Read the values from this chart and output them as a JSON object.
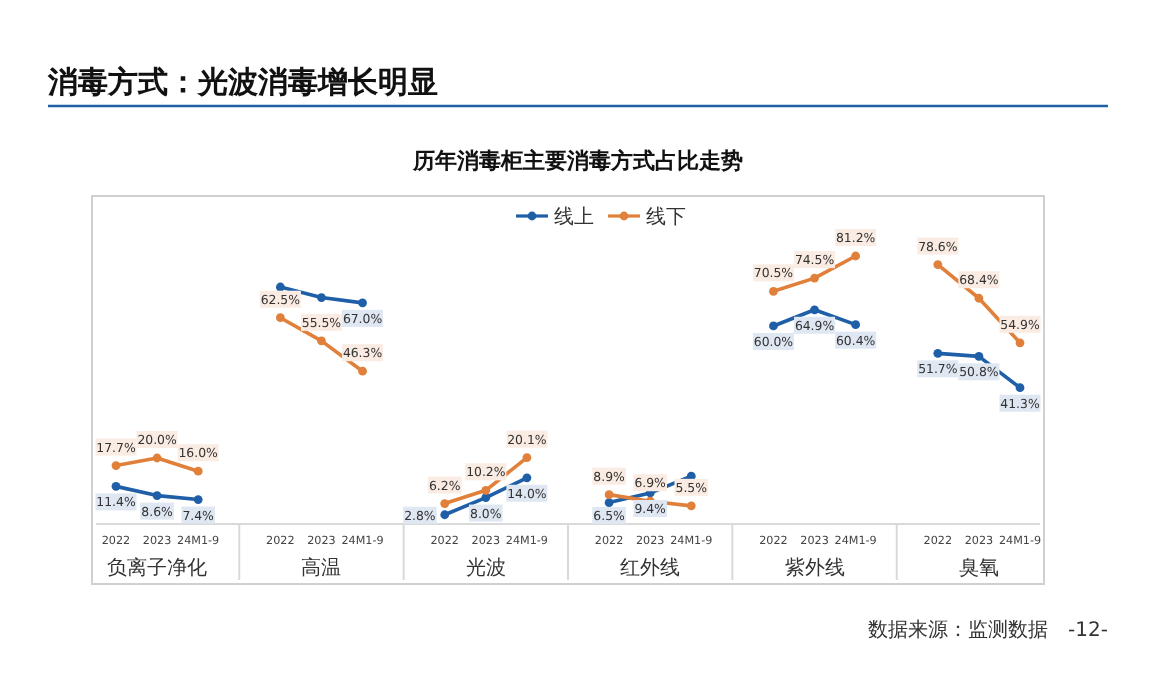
{
  "chart_data": {
    "type": "line",
    "title": "消毒方式：光波消毒增长明显",
    "subtitle": "历年消毒柜主要消毒方式占比走势",
    "categories": [
      "2022",
      "2023",
      "24M1-9",
      null,
      "2022",
      "2023",
      "24M1-9",
      null,
      "2022",
      "2023",
      "24M1-9",
      null,
      "2022",
      "2023",
      "24M1-9",
      null,
      "2022",
      "2023",
      "24M1-9",
      null,
      "2022",
      "2023",
      "24M1-9"
    ],
    "legend": "top",
    "marker": "circle",
    "line_style": "solid",
    "grid": false,
    "annotations": [
      "负离子净化",
      "高温",
      "光波",
      "红外线",
      "紫外线",
      "臭氧",
      "数据来源：监测数据",
      "-12-"
    ],
    "series": [
      {
        "name": "线上",
        "color": "#1f5fa8",
        "values": [
          11.4,
          8.6,
          7.4,
          null,
          71.8,
          68.6,
          67.0,
          null,
          2.8,
          8.0,
          14.0,
          null,
          6.5,
          9.4,
          14.5,
          null,
          60.0,
          64.9,
          60.4,
          null,
          51.7,
          50.8,
          41.3
        ],
        "value_labels": [
          "11.4%",
          "8.6%",
          "7.4%",
          null,
          null,
          null,
          "67.0%",
          null,
          "2.8%",
          "8.0%",
          "14.0%",
          null,
          "6.5%",
          "9.4%",
          null,
          null,
          "60.0%",
          "64.9%",
          "60.4%",
          null,
          "51.7%",
          "50.8%",
          "41.3%"
        ]
      },
      {
        "name": "线下",
        "color": "#e0803a",
        "values": [
          17.7,
          20.0,
          16.0,
          null,
          62.5,
          55.5,
          46.3,
          null,
          6.2,
          10.2,
          20.1,
          null,
          8.9,
          6.9,
          5.5,
          null,
          70.5,
          74.5,
          81.2,
          null,
          78.6,
          68.4,
          54.9
        ],
        "value_labels": [
          "17.7%",
          "20.0%",
          "16.0%",
          null,
          "62.5%",
          "55.5%",
          "46.3%",
          null,
          "6.2%",
          "10.2%",
          "20.1%",
          null,
          "8.9%",
          "6.9%",
          "5.5%",
          null,
          "70.5%",
          "74.5%",
          "81.2%",
          null,
          "78.6%",
          "68.4%",
          "54.9%"
        ]
      }
    ]
  }
}
